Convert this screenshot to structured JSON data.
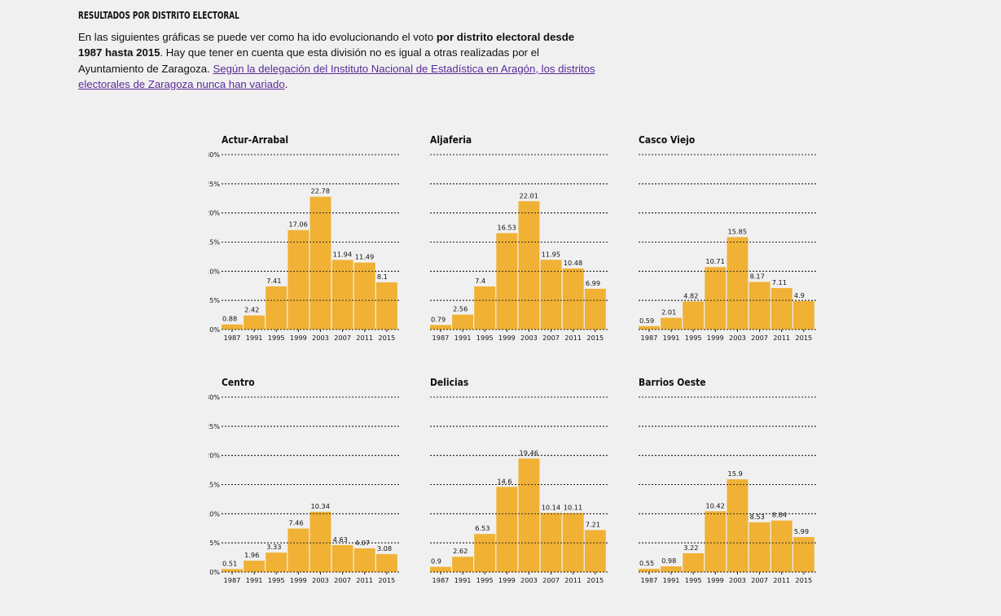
{
  "header": {
    "title": "RESULTADOS POR DISTRITO ELECTORAL",
    "intro_1": "En las siguientes gráficas se puede ver como ha ido evolucionando el voto ",
    "intro_bold": "por distrito electoral desde 1987 hasta 2015",
    "intro_2": ". Hay que tener en cuenta que esta división no es igual a otras realizadas por el Ayuntamiento de Zaragoza. ",
    "link_text": "Según la delegación del Instituto Nacional de Estadística en Aragón, los distritos electorales de Zaragoza nunca han variado",
    "intro_3": "."
  },
  "colors": {
    "bar": "#f0b135",
    "grid": "#222222"
  },
  "chart_data": [
    {
      "type": "bar",
      "title": "Actur-Arrabal",
      "show_yaxis": true,
      "categories": [
        "1987",
        "1991",
        "1995",
        "1999",
        "2003",
        "2007",
        "2011",
        "2015"
      ],
      "values": [
        0.88,
        2.42,
        7.41,
        17.06,
        22.78,
        11.94,
        11.49,
        8.1
      ],
      "yticks": [
        "0%",
        "5%",
        "10%",
        "15%",
        "20%",
        "25%",
        "30%"
      ],
      "ylim": [
        0,
        30
      ]
    },
    {
      "type": "bar",
      "title": "Aljaferia",
      "show_yaxis": false,
      "categories": [
        "1987",
        "1991",
        "1995",
        "1999",
        "2003",
        "2007",
        "2011",
        "2015"
      ],
      "values": [
        0.79,
        2.56,
        7.4,
        16.53,
        22.01,
        11.95,
        10.48,
        6.99
      ],
      "yticks": [
        "0%",
        "5%",
        "10%",
        "15%",
        "20%",
        "25%",
        "30%"
      ],
      "ylim": [
        0,
        30
      ]
    },
    {
      "type": "bar",
      "title": "Casco Viejo",
      "show_yaxis": false,
      "categories": [
        "1987",
        "1991",
        "1995",
        "1999",
        "2003",
        "2007",
        "2011",
        "2015"
      ],
      "values": [
        0.59,
        2.01,
        4.82,
        10.71,
        15.85,
        8.17,
        7.11,
        4.9
      ],
      "yticks": [
        "0%",
        "5%",
        "10%",
        "15%",
        "20%",
        "25%",
        "30%"
      ],
      "ylim": [
        0,
        30
      ]
    },
    {
      "type": "bar",
      "title": "Centro",
      "show_yaxis": true,
      "categories": [
        "1987",
        "1991",
        "1995",
        "1999",
        "2003",
        "2007",
        "2011",
        "2015"
      ],
      "values": [
        0.51,
        1.96,
        3.33,
        7.46,
        10.34,
        4.63,
        4.07,
        3.08
      ],
      "yticks": [
        "0%",
        "5%",
        "10%",
        "15%",
        "20%",
        "25%",
        "30%"
      ],
      "ylim": [
        0,
        30
      ]
    },
    {
      "type": "bar",
      "title": "Delicias",
      "show_yaxis": false,
      "categories": [
        "1987",
        "1991",
        "1995",
        "1999",
        "2003",
        "2007",
        "2011",
        "2015"
      ],
      "values": [
        0.9,
        2.62,
        6.53,
        14.6,
        19.46,
        10.14,
        10.11,
        7.21
      ],
      "yticks": [
        "0%",
        "5%",
        "10%",
        "15%",
        "20%",
        "25%",
        "30%"
      ],
      "ylim": [
        0,
        30
      ]
    },
    {
      "type": "bar",
      "title": "Barrios Oeste",
      "show_yaxis": false,
      "categories": [
        "1987",
        "1991",
        "1995",
        "1999",
        "2003",
        "2007",
        "2011",
        "2015"
      ],
      "values": [
        0.55,
        0.98,
        3.22,
        10.42,
        15.9,
        8.53,
        8.84,
        5.99
      ],
      "yticks": [
        "0%",
        "5%",
        "10%",
        "15%",
        "20%",
        "25%",
        "30%"
      ],
      "ylim": [
        0,
        30
      ]
    }
  ]
}
